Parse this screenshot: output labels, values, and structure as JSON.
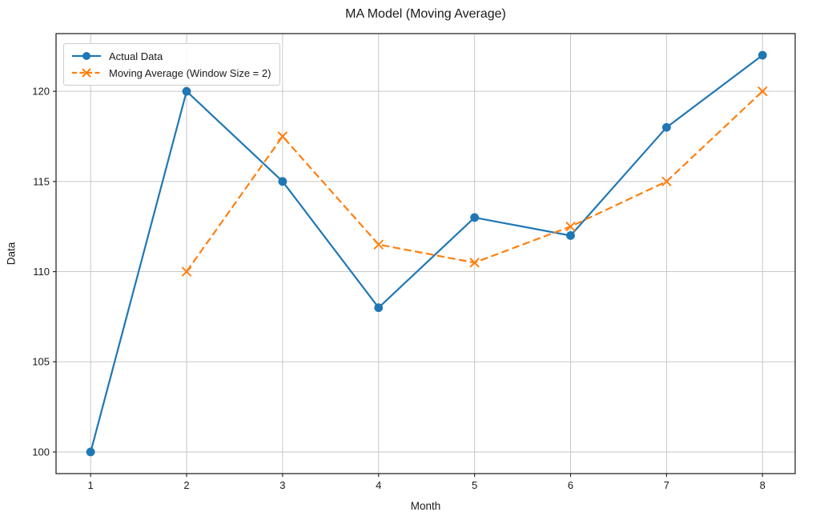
{
  "chart_data": {
    "type": "line",
    "title": "MA Model (Moving Average)",
    "xlabel": "Month",
    "ylabel": "Data",
    "x": [
      1,
      2,
      3,
      4,
      5,
      6,
      7,
      8
    ],
    "series": [
      {
        "name": "Actual Data",
        "color": "#1f77b4",
        "line_style": "solid",
        "marker": "circle",
        "values": [
          100,
          120,
          115,
          108,
          113,
          112,
          118,
          122
        ]
      },
      {
        "name": "Moving Average (Window Size = 2)",
        "color": "#ff7f0e",
        "line_style": "dashed",
        "marker": "x",
        "values": [
          null,
          110,
          117.5,
          111.5,
          110.5,
          112.5,
          115,
          120
        ]
      }
    ],
    "x_ticks": [
      "1",
      "2",
      "3",
      "4",
      "5",
      "6",
      "7",
      "8"
    ],
    "x_tick_values": [
      1,
      2,
      3,
      4,
      5,
      6,
      7,
      8
    ],
    "y_ticks": [
      "100",
      "105",
      "110",
      "115",
      "120"
    ],
    "y_tick_values": [
      100,
      105,
      110,
      115,
      120
    ],
    "xlim": [
      0.64,
      8.34
    ],
    "ylim": [
      98.8,
      123.2
    ],
    "grid": true,
    "legend_position": "upper left",
    "colors": {
      "grid": "#c8c8c8",
      "spine": "#2a2a2a",
      "text": "#1a1a1a",
      "background": "#ffffff"
    }
  }
}
